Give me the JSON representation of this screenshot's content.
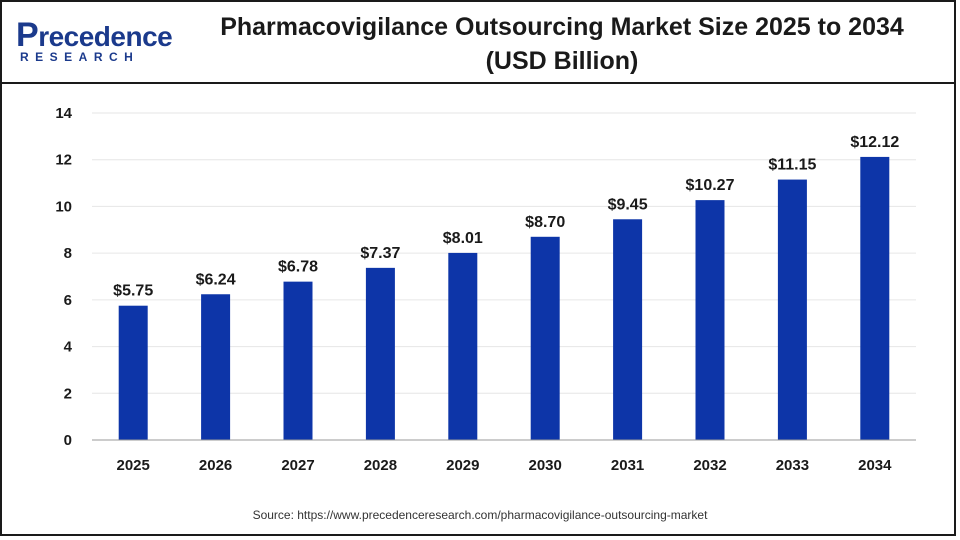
{
  "logo": {
    "brand_first": "P",
    "brand_rest": "recedence",
    "sub": "RESEARCH"
  },
  "source": "Source: https://www.precedenceresearch.com/pharmacovigilance-outsourcing-market",
  "colors": {
    "bar": "#0d35a8",
    "grid": "#e6e6e6",
    "axis": "#999999"
  },
  "chart_data": {
    "type": "bar",
    "title": "Pharmacovigilance Outsourcing Market Size 2025 to 2034",
    "subtitle": "(USD Billion)",
    "xlabel": "",
    "ylabel": "",
    "categories": [
      "2025",
      "2026",
      "2027",
      "2028",
      "2029",
      "2030",
      "2031",
      "2032",
      "2033",
      "2034"
    ],
    "values": [
      5.75,
      6.24,
      6.78,
      7.37,
      8.01,
      8.7,
      9.45,
      10.27,
      11.15,
      12.12
    ],
    "data_labels": [
      "$5.75",
      "$6.24",
      "$6.78",
      "$7.37",
      "$8.01",
      "$8.70",
      "$9.45",
      "$10.27",
      "$11.15",
      "$12.12"
    ],
    "ylim": [
      0,
      14
    ],
    "yticks": [
      0,
      2,
      4,
      6,
      8,
      10,
      12,
      14
    ],
    "grid": true,
    "legend": "none"
  }
}
